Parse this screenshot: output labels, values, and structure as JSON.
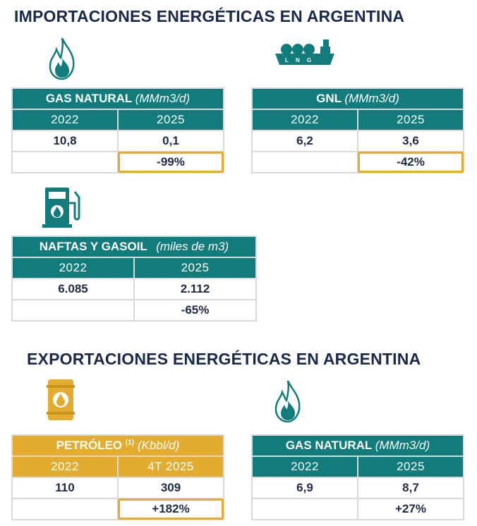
{
  "imports_title": "IMPORTACIONES ENERGÉTICAS EN ARGENTINA",
  "exports_title": "EXPORTACIONES ENERGÉTICAS EN ARGENTINA",
  "colors": {
    "teal": "#127c7c",
    "gold": "#e3ac2f",
    "navy": "#18294a"
  },
  "tables": {
    "imp_gas": {
      "title": "GAS NATURAL",
      "unit": "(MMm3/d)",
      "icon": "flame-icon",
      "col1": "2022",
      "col2": "2025",
      "val1": "10,8",
      "val2": "0,1",
      "change": "-99%"
    },
    "imp_gnl": {
      "title": "GNL",
      "unit": "(MMm3/d)",
      "icon": "lng-ship-icon",
      "col1": "2022",
      "col2": "2025",
      "val1": "6,2",
      "val2": "3,6",
      "change": "-42%"
    },
    "imp_fuel": {
      "title": "NAFTAS Y GASOIL",
      "unit": "(miles de m3)",
      "icon": "fuel-pump-icon",
      "col1": "2022",
      "col2": "2025",
      "val1": "6.085",
      "val2": "2.112",
      "change": "-65%"
    },
    "exp_oil": {
      "title": "PETRÓLEO",
      "footnote": "(1)",
      "unit": "(Kbbl/d)",
      "icon": "oil-barrel-icon",
      "col1": "2022",
      "col2": "4T 2025",
      "val1": "110",
      "val2": "309",
      "change": "+182%"
    },
    "exp_gas": {
      "title": "GAS NATURAL",
      "unit": "(MMm3/d)",
      "icon": "flame-icon",
      "col1": "2022",
      "col2": "2025",
      "val1": "6,9",
      "val2": "8,7",
      "change": "+27%"
    }
  }
}
